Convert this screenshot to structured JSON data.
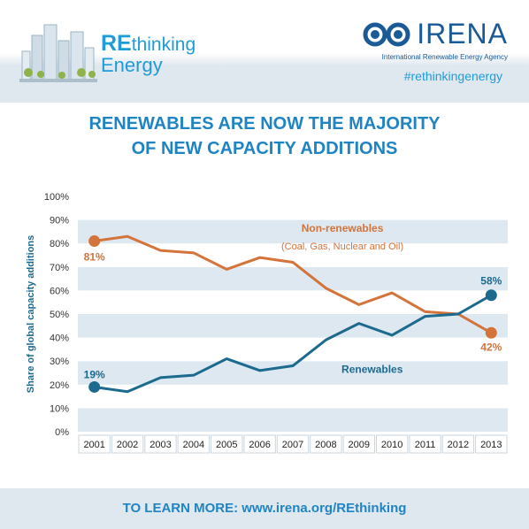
{
  "header": {
    "brand_re": "RE",
    "brand_thinking": "thinking",
    "brand_energy": "Energy",
    "agency_name": "IRENA",
    "agency_full": "International Renewable Energy Agency",
    "hashtag": "#rethinkingenergy"
  },
  "headline": {
    "line1": "RENEWABLES ARE NOW THE MAJORITY",
    "line2": "OF NEW CAPACITY ADDITIONS"
  },
  "footer": {
    "text": "TO LEARN MORE: www.irena.org/REthinking"
  },
  "chart_data": {
    "type": "line",
    "title": "",
    "xlabel": "",
    "ylabel": "Share of global capacity additions",
    "ylim": [
      0,
      100
    ],
    "yticks": [
      "0%",
      "10%",
      "20%",
      "30%",
      "40%",
      "50%",
      "60%",
      "70%",
      "80%",
      "90%",
      "100%"
    ],
    "categories": [
      "2001",
      "2002",
      "2003",
      "2004",
      "2005",
      "2006",
      "2007",
      "2008",
      "2009",
      "2010",
      "2011",
      "2012",
      "2013"
    ],
    "grid": "horizontal bands",
    "series": [
      {
        "name": "Non-renewables",
        "subtitle": "(Coal, Gas, Nuclear and Oil)",
        "color": "#d4733a",
        "values": [
          81,
          83,
          77,
          76,
          69,
          74,
          72,
          61,
          54,
          59,
          51,
          50,
          42
        ],
        "start_label": "81%",
        "end_label": "42%"
      },
      {
        "name": "Renewables",
        "color": "#1c6a8e",
        "values": [
          19,
          17,
          23,
          24,
          31,
          26,
          28,
          39,
          46,
          41,
          49,
          50,
          58
        ],
        "start_label": "19%",
        "end_label": "58%"
      }
    ]
  }
}
